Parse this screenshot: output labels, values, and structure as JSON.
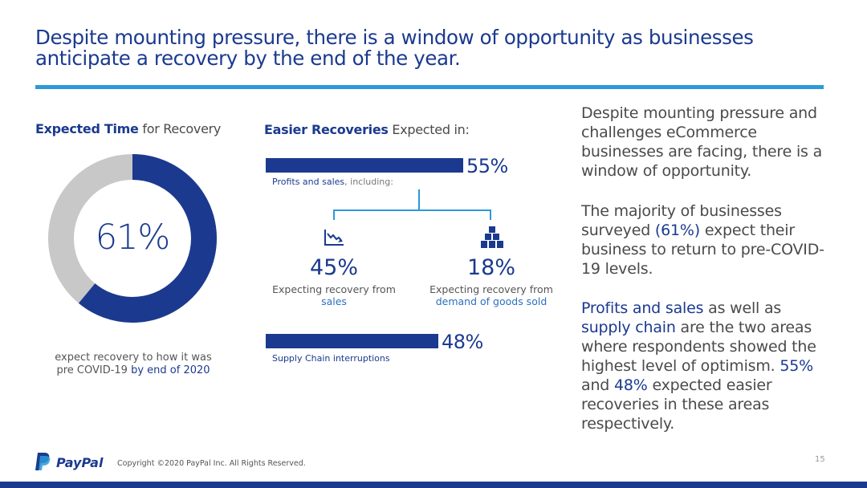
{
  "title": {
    "line1": "Despite mounting pressure, there is a window of opportunity as businesses",
    "line2": "anticipate a recovery by the end of the year."
  },
  "left": {
    "heading_bold": "Expected Time",
    "heading_rest": " for Recovery",
    "percent_value": 61,
    "percent_label": "61%",
    "caption_line1": "expect recovery to how it was",
    "caption_line2_pre": "pre COVID-19 ",
    "caption_line2_hl": "by end of 2020",
    "colors": {
      "filled": "#1b3a8f",
      "remaining": "#c8c8c8"
    }
  },
  "middle": {
    "heading_bold": "Easier Recoveries",
    "heading_rest": " Expected in:",
    "bars": [
      {
        "value": 55,
        "value_label": "55%",
        "label": "Profits and sales",
        "label_suffix": ", including:"
      },
      {
        "value": 48,
        "value_label": "48%",
        "label": "Supply Chain interruptions",
        "label_suffix": ""
      }
    ],
    "sub": [
      {
        "icon": "declining-chart-icon",
        "percent": "45%",
        "caption_line1": "Expecting recovery from",
        "caption_line2": "sales"
      },
      {
        "icon": "stacked-boxes-icon",
        "percent": "18%",
        "caption_line1": "Expecting recovery from",
        "caption_line2": "demand of goods sold"
      }
    ]
  },
  "right": {
    "p1": "Despite mounting pressure and challenges eCommerce businesses are facing, there is a window of opportunity.",
    "p2_a": "The majority of businesses surveyed ",
    "p2_hl": "(61%)",
    "p2_b": " expect their business to return to pre-COVID-19 levels.",
    "p3_hl1": "Profits and sales",
    "p3_a": " as well as ",
    "p3_hl2": "supply chain",
    "p3_b": " are the two areas where respondents showed the highest level of optimism. ",
    "p3_hl3": "55%",
    "p3_c": " and ",
    "p3_hl4": "48%",
    "p3_d": " expected easier recoveries in these areas respectively."
  },
  "footer": {
    "logo_text": "PayPal",
    "copyright": "Copyright ©2020 PayPal Inc. All Rights Reserved.",
    "page_number": "15"
  }
}
